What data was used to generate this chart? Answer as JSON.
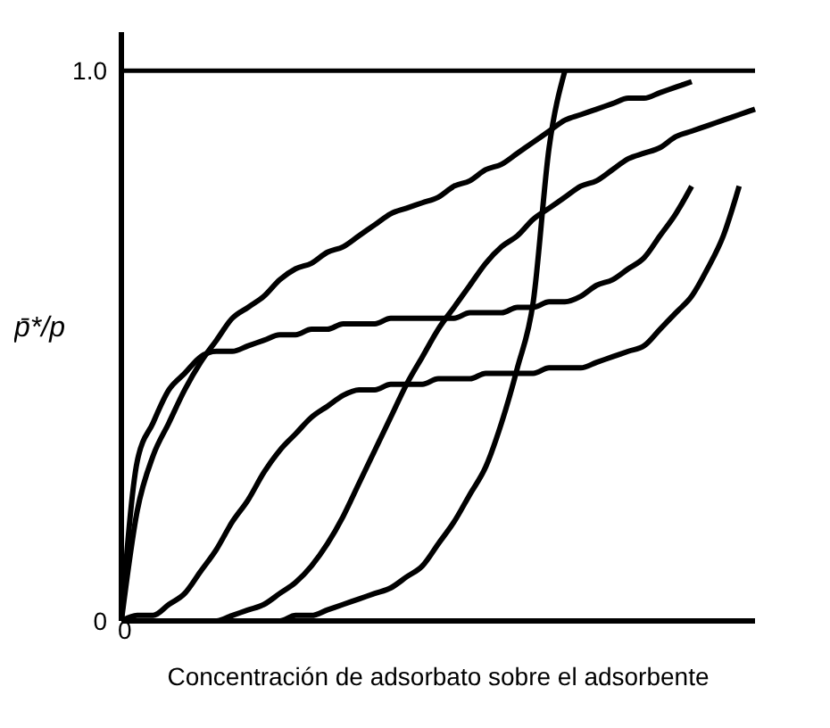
{
  "chart_data": {
    "type": "line",
    "xlabel": "Concentración de adsorbato sobre el adsorbente",
    "ylabel": "p̄*/p",
    "annotations": [
      "0"
    ],
    "ylim": [
      0,
      1.07
    ],
    "yticks": [
      0,
      {
        "value": 1,
        "label": "1.0"
      }
    ],
    "grid": false,
    "legend": false,
    "marker": "none",
    "line_style": "solid",
    "ref_lines": [
      {
        "axis": "y",
        "value": 1,
        "color": "#000000"
      }
    ],
    "categories": [
      null,
      null,
      null,
      null,
      null,
      null,
      null,
      null,
      null,
      null,
      null,
      null,
      null,
      null,
      null,
      null,
      null,
      null,
      null,
      null,
      null,
      null,
      null,
      null,
      null,
      null,
      null,
      null,
      null,
      null,
      null,
      null,
      null,
      null,
      null,
      null,
      null,
      null,
      null,
      null,
      null
    ],
    "series": [
      {
        "color": "#000000",
        "values": [
          0,
          0.29,
          0.36,
          0.42,
          0.45,
          0.48,
          0.49,
          0.49,
          0.5,
          0.51,
          0.52,
          0.52,
          0.53,
          0.53,
          0.54,
          0.54,
          0.54,
          0.55,
          0.55,
          0.55,
          0.55,
          0.55,
          0.56,
          0.56,
          0.56,
          0.57,
          0.57,
          0.58,
          0.58,
          0.59,
          0.61,
          0.62,
          0.64,
          0.66,
          0.7,
          0.74,
          0.79,
          null,
          null,
          null,
          null
        ]
      },
      {
        "color": "#000000",
        "values": [
          0,
          0.2,
          0.3,
          0.36,
          0.42,
          0.47,
          0.51,
          0.55,
          0.57,
          0.59,
          0.62,
          0.64,
          0.65,
          0.67,
          0.68,
          0.7,
          0.72,
          0.74,
          0.75,
          0.76,
          0.77,
          0.79,
          0.8,
          0.82,
          0.83,
          0.85,
          0.87,
          0.89,
          0.91,
          0.92,
          0.93,
          0.94,
          0.95,
          0.95,
          0.96,
          0.97,
          0.98,
          null,
          null,
          null,
          null
        ]
      },
      {
        "color": "#000000",
        "values": [
          0,
          0.01,
          0.01,
          0.03,
          0.05,
          0.09,
          0.13,
          0.18,
          0.22,
          0.27,
          0.31,
          0.34,
          0.37,
          0.39,
          0.41,
          0.42,
          0.42,
          0.43,
          0.43,
          0.43,
          0.44,
          0.44,
          0.44,
          0.45,
          0.45,
          0.45,
          0.45,
          0.46,
          0.46,
          0.46,
          0.47,
          0.48,
          0.49,
          0.5,
          0.53,
          0.56,
          0.59,
          0.64,
          0.7,
          0.79,
          null
        ]
      },
      {
        "color": "#000000",
        "values": [
          0,
          0,
          0,
          0,
          0,
          0,
          0,
          0.01,
          0.02,
          0.03,
          0.05,
          0.07,
          0.1,
          0.14,
          0.19,
          0.25,
          0.31,
          0.37,
          0.43,
          0.48,
          0.53,
          0.57,
          0.61,
          0.65,
          0.68,
          0.7,
          0.73,
          0.75,
          0.77,
          0.79,
          0.8,
          0.82,
          0.84,
          0.85,
          0.86,
          0.88,
          0.89,
          0.9,
          0.91,
          0.92,
          0.93
        ]
      },
      {
        "color": "#000000",
        "values": [
          0,
          0,
          0,
          0,
          0,
          0,
          0,
          0,
          0,
          0,
          0,
          0.01,
          0.01,
          0.02,
          0.03,
          0.04,
          0.05,
          0.06,
          0.08,
          0.1,
          0.14,
          0.18,
          0.23,
          0.28,
          0.36,
          0.46,
          0.58,
          0.86,
          1.0,
          null,
          null,
          null,
          null,
          null,
          null,
          null,
          null,
          null,
          null,
          null,
          null
        ]
      }
    ]
  }
}
